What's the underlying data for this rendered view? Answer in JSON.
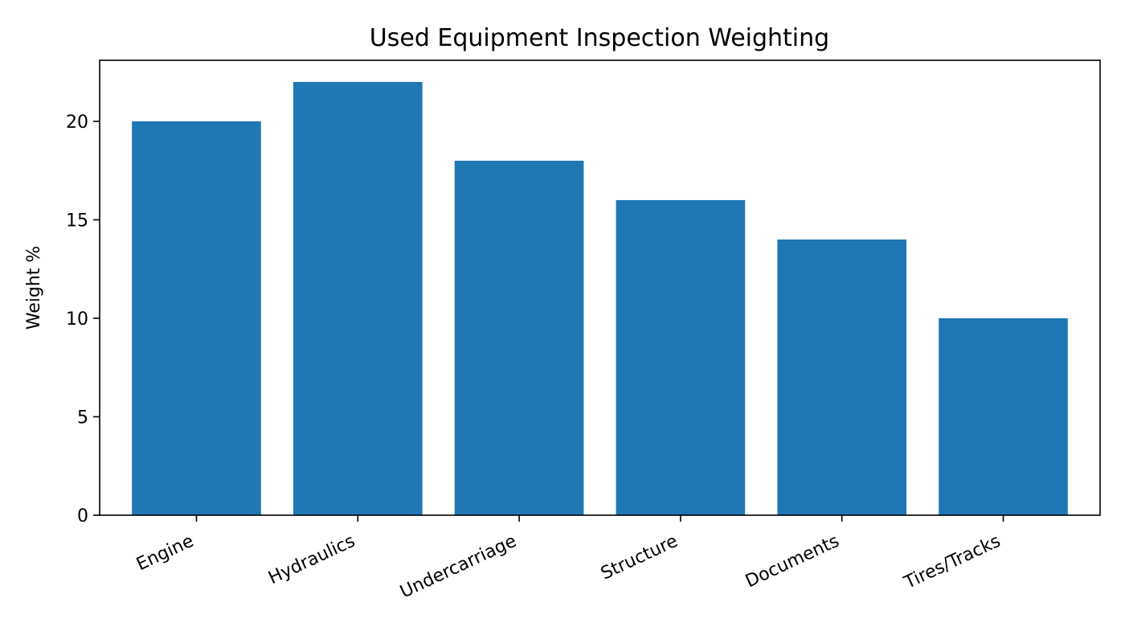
{
  "chart_data": {
    "type": "bar",
    "title": "Used Equipment Inspection Weighting",
    "xlabel": "",
    "ylabel": "Weight %",
    "categories": [
      "Engine",
      "Hydraulics",
      "Undercarriage",
      "Structure",
      "Documents",
      "Tires/Tracks"
    ],
    "values": [
      20,
      22,
      18,
      16,
      14,
      10
    ],
    "ylim": [
      0,
      23.1
    ],
    "yticks": [
      0,
      5,
      10,
      15,
      20
    ],
    "ytick_labels": [
      "0",
      "5",
      "10",
      "15",
      "20"
    ],
    "bar_color": "#1f77b4",
    "grid": false,
    "legend": "none"
  }
}
